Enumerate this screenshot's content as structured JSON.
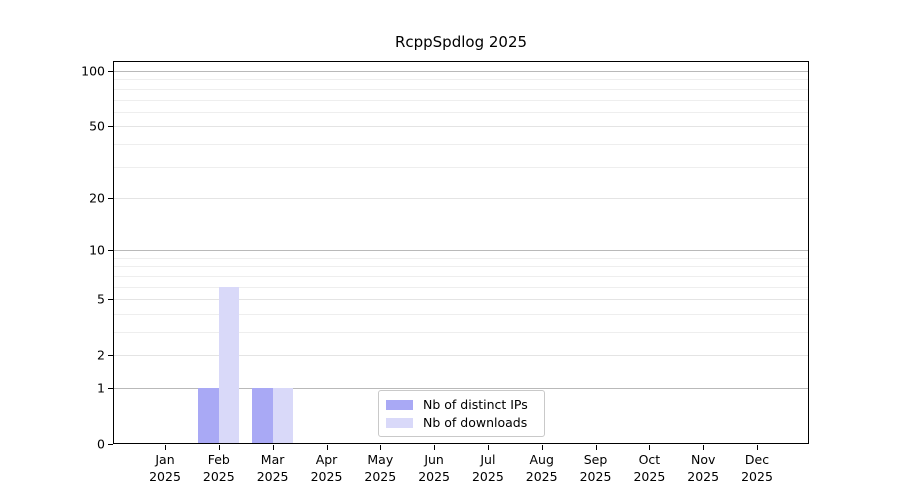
{
  "chart_data": {
    "type": "bar",
    "title": "RcppSpdlog 2025",
    "categories": [
      "Jan",
      "Feb",
      "Mar",
      "Apr",
      "May",
      "Jun",
      "Jul",
      "Aug",
      "Sep",
      "Oct",
      "Nov",
      "Dec"
    ],
    "category_year": "2025",
    "series": [
      {
        "name": "Nb of distinct IPs",
        "color": "#a9a9f5",
        "values": [
          0,
          1,
          1,
          0,
          0,
          0,
          0,
          0,
          0,
          0,
          0,
          0
        ]
      },
      {
        "name": "Nb of downloads",
        "color": "#d9d9f9",
        "values": [
          0,
          6,
          1,
          0,
          0,
          0,
          0,
          0,
          0,
          0,
          0,
          0
        ]
      }
    ],
    "yscale": "log1p",
    "ylim": [
      0,
      112
    ],
    "ytick_values": [
      0,
      1,
      2,
      5,
      10,
      20,
      50,
      100
    ],
    "ytick_labels": [
      "0",
      "1",
      "2",
      "5",
      "10",
      "20",
      "50",
      "100"
    ],
    "major_gridlines": [
      1,
      10,
      100
    ],
    "labeled_gridlines": [
      2,
      5,
      20,
      50
    ],
    "minor_gridlines": [
      3,
      4,
      6,
      7,
      8,
      9,
      30,
      40,
      60,
      70,
      80,
      90
    ],
    "grid": "on",
    "legend_position": "lower center",
    "xlabel": "",
    "ylabel": ""
  },
  "colors": {
    "background": "#ffffff",
    "spine": "#000000",
    "text": "#000000",
    "major_grid": "#b9b9b9",
    "labeled_grid": "#e4e4e4",
    "minor_grid": "#eeeeee",
    "distinct_ips_bar": "#a9a9f5",
    "downloads_bar": "#d9d9f9"
  }
}
